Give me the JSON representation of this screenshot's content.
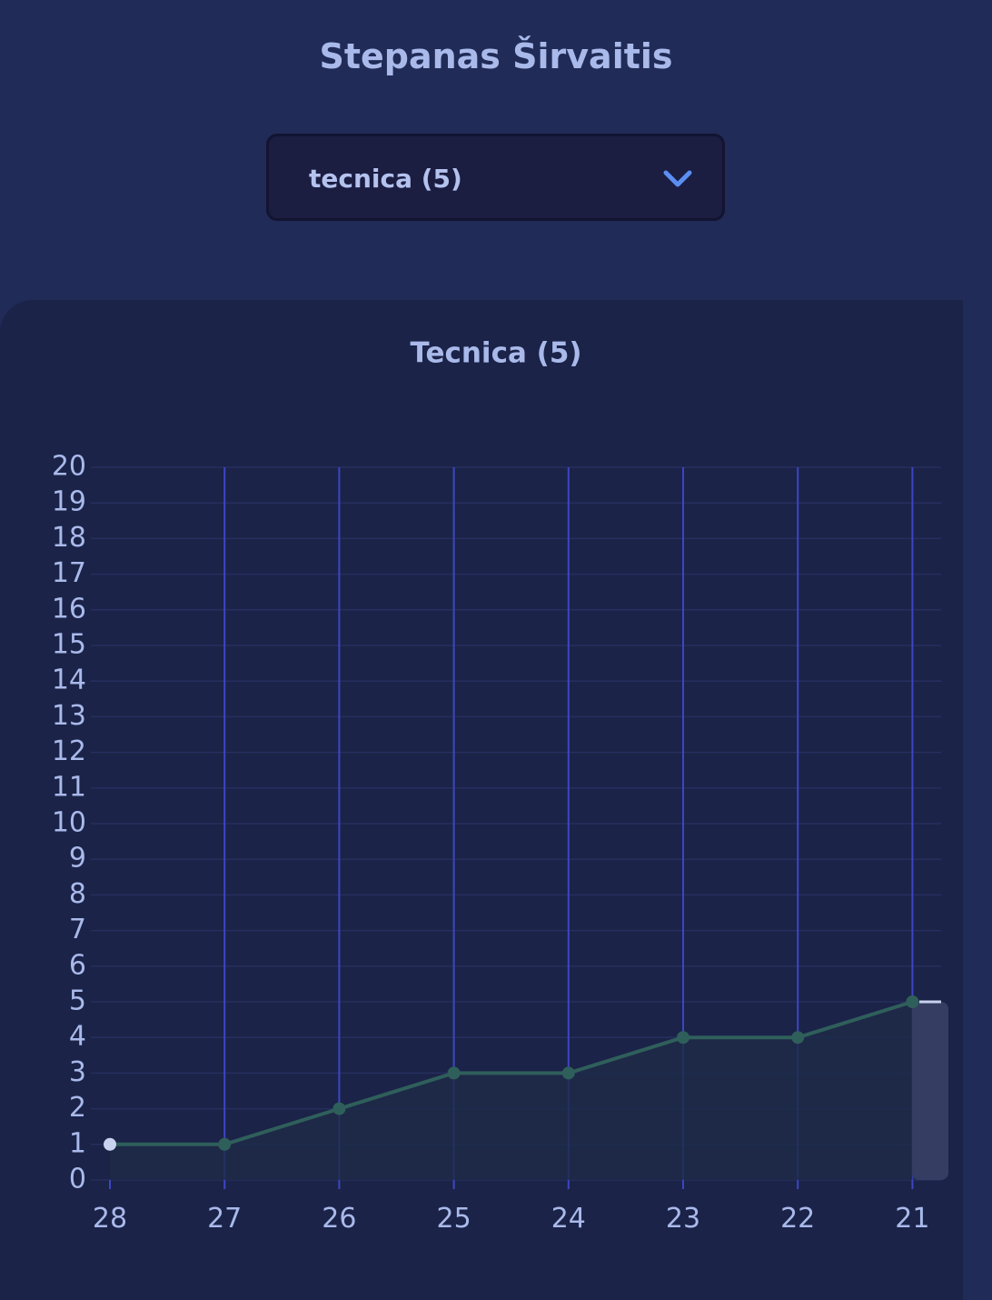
{
  "header": {
    "title": "Stepanas Širvaitis"
  },
  "select": {
    "value": "tecnica (5)"
  },
  "chart_data": {
    "type": "line",
    "title": "Tecnica (5)",
    "categories": [
      "28",
      "27",
      "26",
      "25",
      "24",
      "23",
      "22",
      "21"
    ],
    "series": [
      {
        "color": "#2f5f5b",
        "values": [
          1,
          1,
          2,
          3,
          3,
          4,
          4,
          5
        ]
      }
    ],
    "ylim": [
      0,
      20
    ],
    "yticks": [
      0,
      1,
      2,
      3,
      4,
      5,
      6,
      7,
      8,
      9,
      10,
      11,
      12,
      13,
      14,
      15,
      16,
      17,
      18,
      19,
      20
    ],
    "grid": true
  }
}
